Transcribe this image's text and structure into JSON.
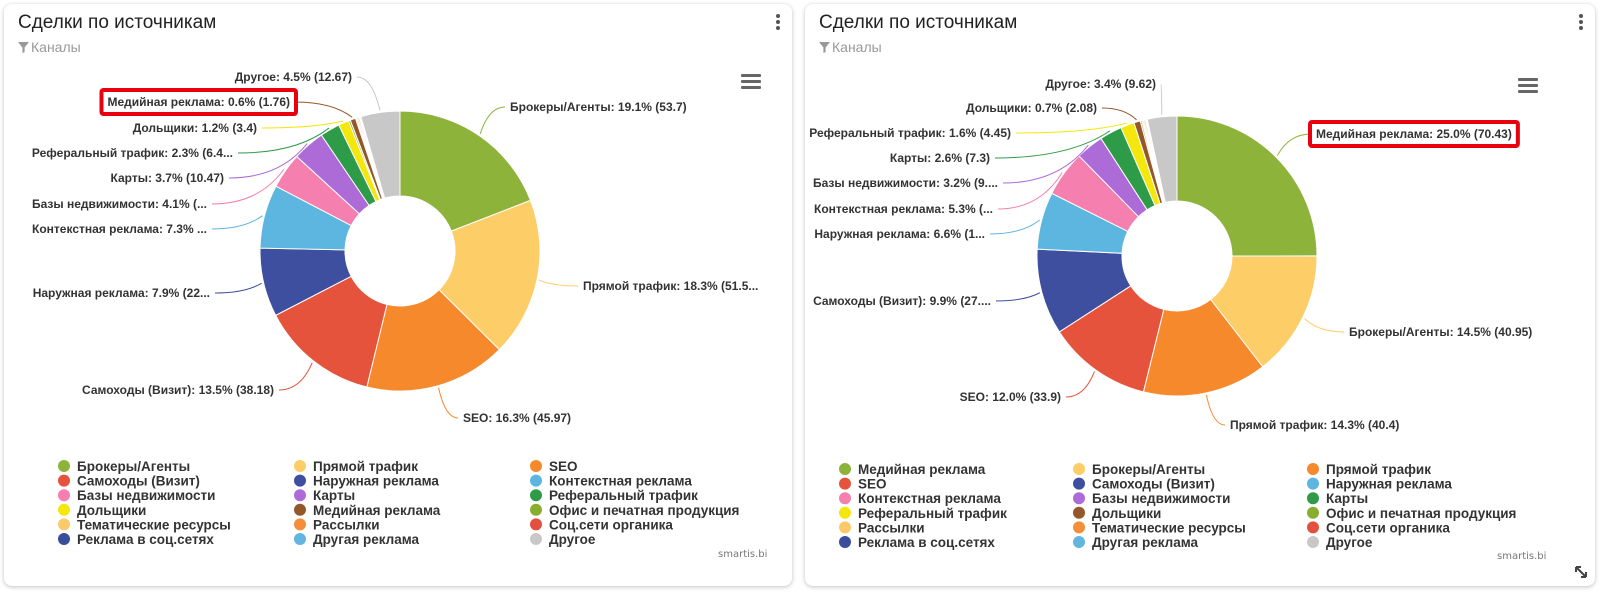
{
  "chart_data": [
    {
      "type": "pie",
      "title": "Сделки по источникам",
      "filter": "Каналы",
      "watermark": "smartis.bi",
      "slices": [
        {
          "name": "Брокеры/Агенты",
          "value": 53.7,
          "label": "Брокеры/Агенты: 19.1% (53.7)",
          "color": "#8db33a"
        },
        {
          "name": "Прямой трафик",
          "value": 51.5,
          "label": "Прямой трафик: 18.3% (51.5...",
          "color": "#fdcd67"
        },
        {
          "name": "SEO",
          "value": 45.97,
          "label": "SEO: 16.3% (45.97)",
          "color": "#f7892d"
        },
        {
          "name": "Самоходы (Визит)",
          "value": 38.18,
          "label": "Самоходы (Визит): 13.5% (38.18)",
          "color": "#e6533d"
        },
        {
          "name": "Наружная реклама",
          "value": 22.3,
          "label": "Наружная реклама: 7.9% (22...",
          "color": "#3d4f9e"
        },
        {
          "name": "Контекстная реклама",
          "value": 20.6,
          "label": "Контекстная реклама: 7.3% ...",
          "color": "#5db6e0"
        },
        {
          "name": "Базы недвижимости",
          "value": 11.6,
          "label": "Базы недвижимости: 4.1% (...",
          "color": "#f57fae"
        },
        {
          "name": "Карты",
          "value": 10.47,
          "label": "Карты: 3.7% (10.47)",
          "color": "#ad6bd8"
        },
        {
          "name": "Реферальный трафик",
          "value": 6.4,
          "label": "Реферальный трафик: 2.3% (6.4...",
          "color": "#2e9b48"
        },
        {
          "name": "Дольщики",
          "value": 3.4,
          "label": "Дольщики: 1.2% (3.4)",
          "color": "#f3e70e"
        },
        {
          "name": "Офис и печатная продукция",
          "value": 0.6,
          "label": "",
          "color": "#88ad2f"
        },
        {
          "name": "Медийная реклама",
          "value": 1.76,
          "label": "Медийная реклама: 0.6% (1.76)",
          "color": "#94572b"
        },
        {
          "name": "Тематические ресурсы",
          "value": 0.4,
          "label": "",
          "color": "#fcc96a"
        },
        {
          "name": "Рассылки",
          "value": 0.4,
          "label": "",
          "color": "#f58e3a"
        },
        {
          "name": "Соц.сети органика",
          "value": 0.4,
          "label": "",
          "color": "#e35040"
        },
        {
          "name": "Реклама в соц.сетях",
          "value": 0.3,
          "label": "",
          "color": "#3a4d9a"
        },
        {
          "name": "Другая реклама",
          "value": 0.3,
          "label": "",
          "color": "#62b5de"
        },
        {
          "name": "Другое",
          "value": 12.67,
          "label": "Другое: 4.5% (12.67)",
          "color": "#c8c8c8"
        }
      ],
      "legend": [
        "Брокеры/Агенты",
        "Прямой трафик",
        "SEO",
        "Самоходы (Визит)",
        "Наружная реклама",
        "Контекстная реклама",
        "Базы недвижимости",
        "Карты",
        "Реферальный трафик",
        "Дольщики",
        "Медийная реклама",
        "Офис и печатная продукция",
        "Тематические ресурсы",
        "Рассылки",
        "Соц.сети органика",
        "Реклама в соц.сетях",
        "Другая реклама",
        "Другое"
      ],
      "highlight": "Медийная реклама"
    },
    {
      "type": "pie",
      "title": "Сделки по источникам",
      "filter": "Каналы",
      "watermark": "smartis.bi",
      "slices": [
        {
          "name": "Медийная реклама",
          "value": 70.43,
          "label": "Медийная реклама: 25.0% (70.43)",
          "color": "#8db33a"
        },
        {
          "name": "Брокеры/Агенты",
          "value": 40.95,
          "label": "Брокеры/Агенты: 14.5% (40.95)",
          "color": "#fdcd67"
        },
        {
          "name": "Прямой трафик",
          "value": 40.4,
          "label": "Прямой трафик: 14.3% (40.4)",
          "color": "#f7892d"
        },
        {
          "name": "SEO",
          "value": 33.9,
          "label": "SEO: 12.0% (33.9)",
          "color": "#e6533d"
        },
        {
          "name": "Самоходы (Визит)",
          "value": 27.9,
          "label": "Самоходы (Визит): 9.9% (27....",
          "color": "#3d4f9e"
        },
        {
          "name": "Наружная реклама",
          "value": 18.6,
          "label": "Наружная реклама: 6.6% (1...",
          "color": "#5db6e0"
        },
        {
          "name": "Контекстная реклама",
          "value": 14.9,
          "label": "Контекстная реклама: 5.3% (...",
          "color": "#f57fae"
        },
        {
          "name": "Базы недвижимости",
          "value": 9.0,
          "label": "Базы недвижимости: 3.2% (9....",
          "color": "#ad6bd8"
        },
        {
          "name": "Карты",
          "value": 7.3,
          "label": "Карты: 2.6% (7.3)",
          "color": "#2e9b48"
        },
        {
          "name": "Реферальный трафик",
          "value": 4.45,
          "label": "Реферальный трафик: 1.6% (4.45)",
          "color": "#f3e70e"
        },
        {
          "name": "Дольщики",
          "value": 2.08,
          "label": "Дольщики: 0.7% (2.08)",
          "color": "#94572b"
        },
        {
          "name": "Офис и печатная продукция",
          "value": 0.5,
          "label": "",
          "color": "#88ad2f"
        },
        {
          "name": "Рассылки",
          "value": 0.4,
          "label": "",
          "color": "#fcc96a"
        },
        {
          "name": "Тематические ресурсы",
          "value": 0.4,
          "label": "",
          "color": "#f58e3a"
        },
        {
          "name": "Соц.сети органика",
          "value": 0.4,
          "label": "",
          "color": "#e35040"
        },
        {
          "name": "Реклама в соц.сетях",
          "value": 0.3,
          "label": "",
          "color": "#3a4d9a"
        },
        {
          "name": "Другая реклама",
          "value": 0.3,
          "label": "",
          "color": "#62b5de"
        },
        {
          "name": "Другое",
          "value": 9.62,
          "label": "Другое: 3.4% (9.62)",
          "color": "#c8c8c8"
        }
      ],
      "legend": [
        "Медийная реклама",
        "Брокеры/Агенты",
        "Прямой трафик",
        "SEO",
        "Самоходы (Визит)",
        "Наружная реклама",
        "Контекстная реклама",
        "Базы недвижимости",
        "Карты",
        "Реферальный трафик",
        "Дольщики",
        "Офис и печатная продукция",
        "Рассылки",
        "Тематические ресурсы",
        "Соц.сети органика",
        "Реклама в соц.сетях",
        "Другая реклама",
        "Другое"
      ],
      "highlight": "Медийная реклама"
    }
  ]
}
